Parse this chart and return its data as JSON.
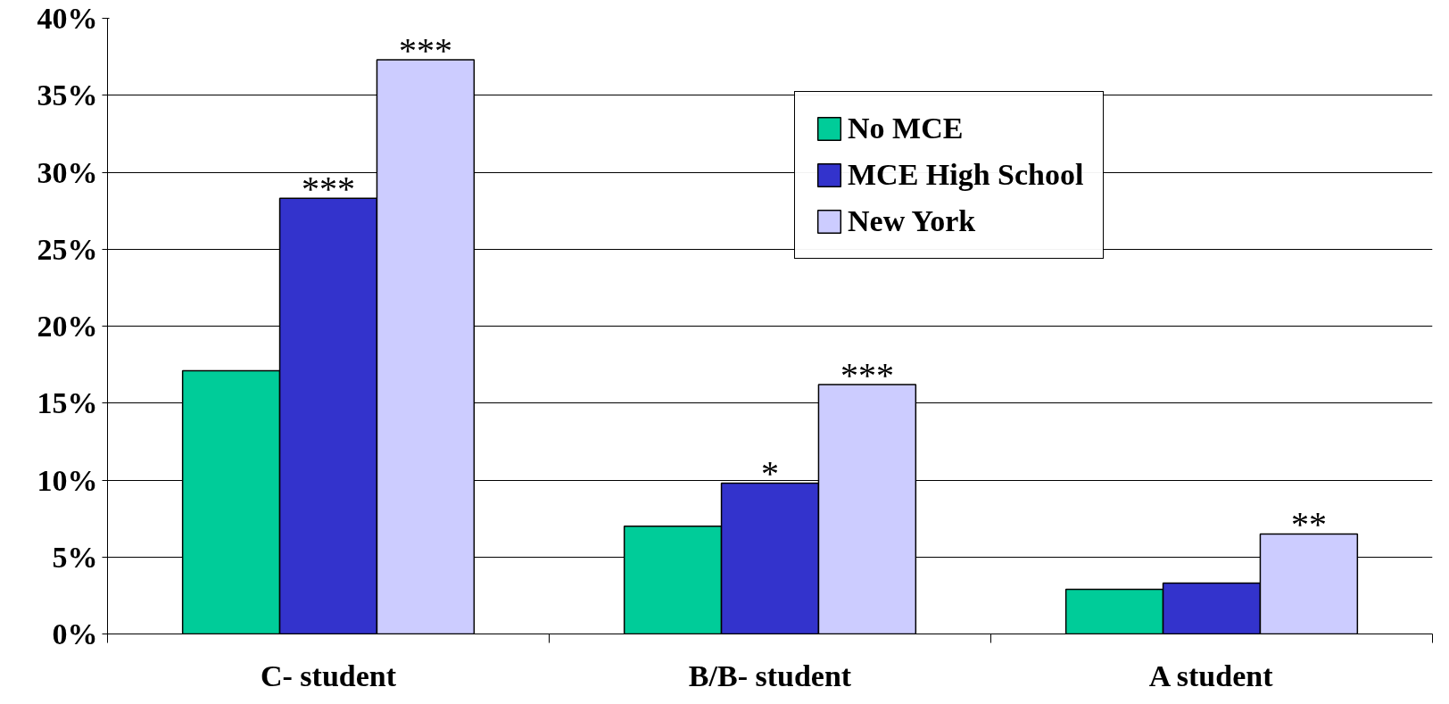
{
  "chart_data": {
    "type": "bar",
    "categories": [
      "C- student",
      "B/B- student",
      "A student"
    ],
    "series": [
      {
        "name": "No MCE",
        "color": "#00cc99",
        "values": [
          17.1,
          7.0,
          2.9
        ]
      },
      {
        "name": "MCE High School",
        "color": "#3333cc",
        "values": [
          28.3,
          9.8,
          3.3
        ],
        "value_labels": [
          "***",
          "*",
          null
        ]
      },
      {
        "name": "New York",
        "color": "#ccccff",
        "values": [
          37.3,
          16.2,
          6.5
        ],
        "value_labels": [
          "***",
          "***",
          "**"
        ]
      }
    ],
    "ylim": [
      0,
      40
    ],
    "yticks": [
      {
        "value": 0,
        "label": "0%"
      },
      {
        "value": 5,
        "label": "5%"
      },
      {
        "value": 10,
        "label": "10%"
      },
      {
        "value": 15,
        "label": "15%"
      },
      {
        "value": 20,
        "label": "20%"
      },
      {
        "value": 25,
        "label": "25%"
      },
      {
        "value": 30,
        "label": "30%"
      },
      {
        "value": 35,
        "label": "35%"
      },
      {
        "value": 40,
        "label": "40%"
      }
    ],
    "grid": "y",
    "legend": "top right"
  }
}
